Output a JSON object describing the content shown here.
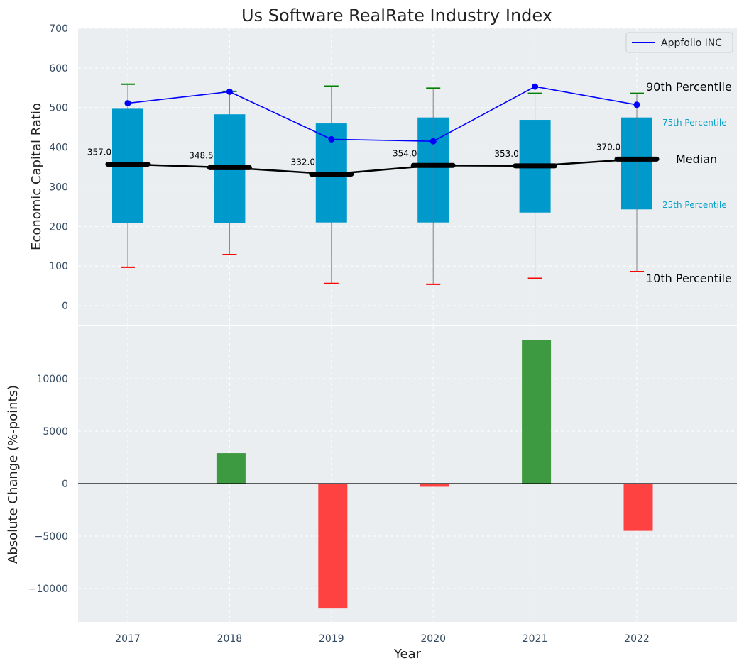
{
  "chart_data": [
    {
      "type": "box",
      "title": "Us Software RealRate Industry Index",
      "xlabel": "",
      "ylabel": "Economic Capital Ratio",
      "ylim": [
        -50,
        700
      ],
      "yticks": [
        0,
        100,
        200,
        300,
        400,
        500,
        600,
        700
      ],
      "categories": [
        "2017",
        "2018",
        "2019",
        "2020",
        "2021",
        "2022"
      ],
      "p10": [
        97,
        129,
        56,
        54,
        69,
        86
      ],
      "p25": [
        208,
        208,
        210,
        210,
        235,
        243
      ],
      "median": [
        357.0,
        348.5,
        332.0,
        354.0,
        353.0,
        370.0
      ],
      "median_labels": [
        "357.0",
        "348.5",
        "332.0",
        "354.0",
        "353.0",
        "370.0"
      ],
      "p75": [
        497,
        483,
        460,
        475,
        469,
        475
      ],
      "p90": [
        559,
        541,
        554,
        549,
        536,
        536
      ],
      "company": {
        "name": "Appfolio INC",
        "values": [
          511,
          540,
          420,
          415,
          553,
          507
        ]
      },
      "annotations": {
        "p90": "90th Percentile",
        "p75": "75th Percentile",
        "median": "Median",
        "p25": "25th Percentile",
        "p10": "10th Percentile"
      },
      "legend_position": "top-right",
      "grid": true
    },
    {
      "type": "bar",
      "xlabel": "Year",
      "ylabel": "Absolute Change (%-points)",
      "ylim": [
        -13000,
        14800
      ],
      "yticks": [
        -10000,
        -5000,
        0,
        5000,
        10000
      ],
      "ytick_labels": [
        "−10000",
        "−5000",
        "0",
        "5000",
        "10000"
      ],
      "categories": [
        "2017",
        "2018",
        "2019",
        "2020",
        "2021",
        "2022"
      ],
      "values": [
        0,
        2900,
        -11900,
        -300,
        13700,
        -4500
      ],
      "grid": true
    }
  ],
  "colors": {
    "box": "#0099cc",
    "median": "#000000",
    "company": "#0000ff",
    "p90_cap": "#008000",
    "p10_cap": "#ff0000",
    "positive": "#2e9331",
    "negative": "#ff3333",
    "plot_bg": "#eaeef0"
  }
}
